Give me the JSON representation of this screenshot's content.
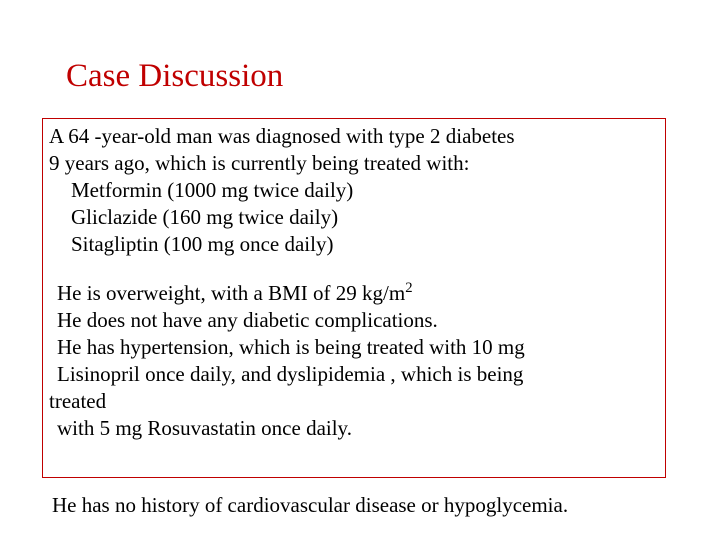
{
  "colors": {
    "title_color": "#c00000",
    "box_border": "#c00000",
    "text_color": "#000000",
    "background": "#ffffff"
  },
  "typography": {
    "font_family": "Times New Roman",
    "title_fontsize_pt": 25,
    "body_fontsize_pt": 16
  },
  "title": "Case Discussion",
  "intro": {
    "line1": "A 64 -year-old man  was diagnosed with type 2 diabetes",
    "line2": " 9 years ago, which is currently being treated with:"
  },
  "medications": [
    "Metformin (1000 mg twice daily)",
    "Gliclazide (160 mg twice daily)",
    "Sitagliptin (100 mg once daily)"
  ],
  "bmi": {
    "prefix": "He is overweight, with a BMI of 29 kg/m",
    "sup": "2"
  },
  "complications": "He does not have any diabetic complications.",
  "htn": {
    "line1": "He has hypertension, which is being treated with 10 mg",
    "line2_prefix": " Lisinopril once daily, and ",
    "line2_mid": "dyslipidemia",
    "line2_suffix": " , which is being",
    "line3_prefix": "treated",
    "line4_prefix": " with 5 mg ",
    "line4_drug": "Rosuvastatin",
    "line4_suffix": " once daily."
  },
  "footer": "He has no history of cardiovascular disease or hypoglycemia."
}
